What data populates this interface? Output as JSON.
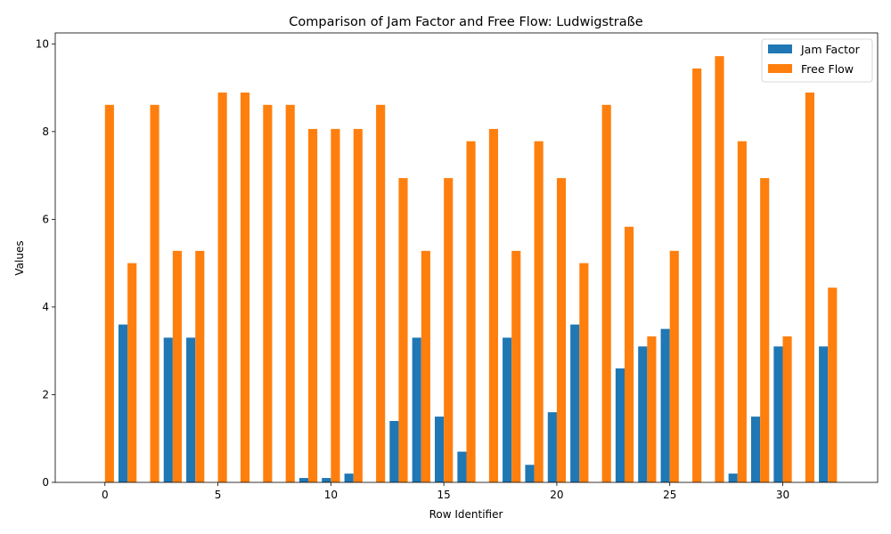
{
  "chart_data": {
    "type": "bar",
    "title": "Comparison of Jam Factor and Free Flow: Ludwigstraße",
    "xlabel": "Row Identifier",
    "ylabel": "Values",
    "xlim": [
      -2.2,
      34.2
    ],
    "ylim": [
      0,
      10.25
    ],
    "xticks": [
      0,
      5,
      10,
      15,
      20,
      25,
      30
    ],
    "yticks": [
      0,
      2,
      4,
      6,
      8,
      10
    ],
    "legend": "top-right",
    "grid": false,
    "x": [
      0,
      1,
      2,
      3,
      4,
      5,
      6,
      7,
      8,
      9,
      10,
      11,
      12,
      13,
      14,
      15,
      16,
      17,
      18,
      19,
      20,
      21,
      22,
      23,
      24,
      25,
      26,
      27,
      28,
      29,
      30,
      31,
      32
    ],
    "series": [
      {
        "name": "Jam Factor",
        "color": "#1f77b4",
        "values": [
          0,
          3.6,
          0,
          3.3,
          3.3,
          0,
          0,
          0,
          0,
          0.1,
          0.1,
          0.2,
          0,
          1.4,
          3.3,
          1.5,
          0.7,
          0,
          3.3,
          0.4,
          1.6,
          3.6,
          0,
          2.6,
          3.1,
          3.5,
          0,
          0,
          0.2,
          1.5,
          3.1,
          0,
          3.1
        ]
      },
      {
        "name": "Free Flow",
        "color": "#ff7f0e",
        "values": [
          8.61,
          5.0,
          8.61,
          5.28,
          5.28,
          8.89,
          8.89,
          8.61,
          8.61,
          8.06,
          8.06,
          8.06,
          8.61,
          6.94,
          5.28,
          6.94,
          7.78,
          8.06,
          5.28,
          7.78,
          6.94,
          5.0,
          8.61,
          5.83,
          3.33,
          5.28,
          9.44,
          9.72,
          7.78,
          6.94,
          3.33,
          8.89,
          4.44
        ]
      }
    ]
  }
}
